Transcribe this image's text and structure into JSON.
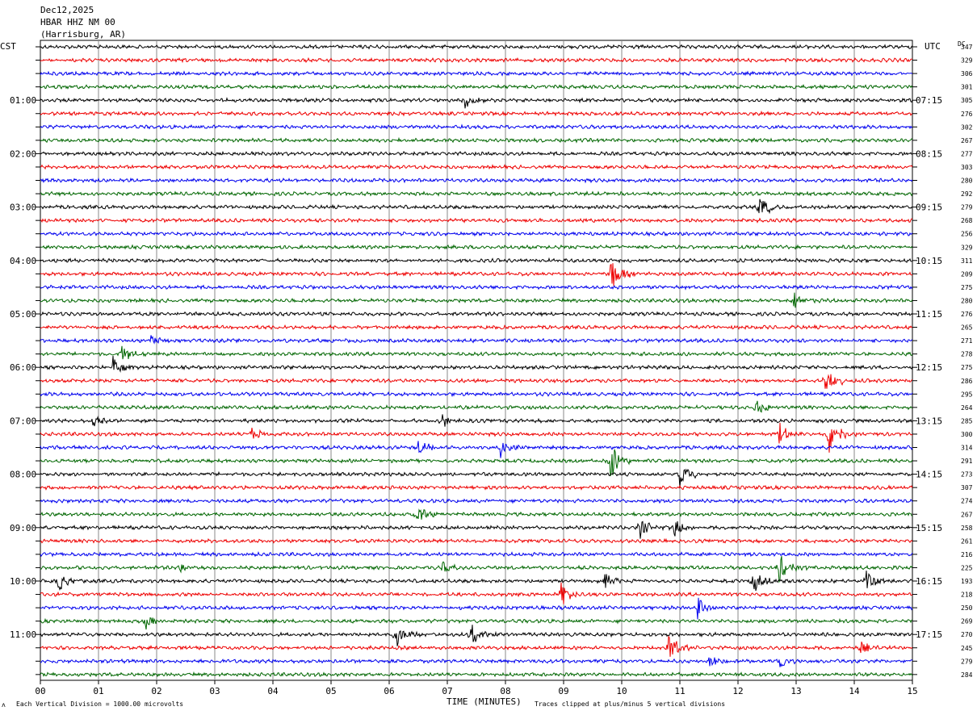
{
  "header": {
    "date": "Dec12,2025",
    "station": "HBAR HHZ NM 00",
    "location": "(Harrisburg, AR)"
  },
  "left_axis_title": "CST",
  "right_axis_title": "UTC",
  "dc_header": "DC",
  "footer": {
    "scale_note": "Each Vertical Division = 1000.00 microvolts",
    "xlabel": "TIME (MINUTES)",
    "clip_note": "Traces clipped at plus/minus 5 vertical divisions",
    "corner_glyph": "ʌ"
  },
  "trace_colors": [
    "#000000",
    "#ee0000",
    "#0000ee",
    "#006600"
  ],
  "chart_data": {
    "type": "line",
    "title": "HBAR HHZ NM 00",
    "xlabel": "TIME (MINUTES)",
    "xlim": [
      0,
      15
    ],
    "x_ticks": [
      "00",
      "01",
      "02",
      "03",
      "04",
      "05",
      "06",
      "07",
      "08",
      "09",
      "10",
      "11",
      "12",
      "13",
      "14",
      "15"
    ],
    "left_hour_labels": [
      "01:00",
      "02:00",
      "03:00",
      "04:00",
      "05:00",
      "06:00",
      "07:00",
      "08:00",
      "09:00",
      "10:00",
      "11:00"
    ],
    "right_hour_labels": [
      "07:15",
      "08:15",
      "09:15",
      "10:15",
      "11:15",
      "12:15",
      "13:15",
      "14:15",
      "15:15",
      "16:15",
      "17:15"
    ],
    "trace_count": 48,
    "dc_offsets": [
      347,
      329,
      306,
      301,
      305,
      276,
      302,
      267,
      277,
      303,
      280,
      292,
      279,
      268,
      256,
      329,
      311,
      209,
      275,
      280,
      276,
      265,
      271,
      278,
      275,
      286,
      295,
      264,
      285,
      300,
      314,
      291,
      273,
      307,
      274,
      267,
      258,
      261,
      216,
      225,
      193,
      218,
      250,
      269,
      270,
      245,
      279,
      284
    ],
    "events": [
      {
        "trace": 4,
        "minute": 7.3,
        "amp": 0.8
      },
      {
        "trace": 12,
        "minute": 12.35,
        "amp": 1.3
      },
      {
        "trace": 17,
        "minute": 9.8,
        "amp": 1.8
      },
      {
        "trace": 19,
        "minute": 12.95,
        "amp": 0.9
      },
      {
        "trace": 22,
        "minute": 1.9,
        "amp": 0.5
      },
      {
        "trace": 23,
        "minute": 1.4,
        "amp": 0.8
      },
      {
        "trace": 24,
        "minute": 1.25,
        "amp": 1.0
      },
      {
        "trace": 25,
        "minute": 13.5,
        "amp": 1.5
      },
      {
        "trace": 27,
        "minute": 12.3,
        "amp": 0.9
      },
      {
        "trace": 28,
        "minute": 0.9,
        "amp": 0.6
      },
      {
        "trace": 28,
        "minute": 6.9,
        "amp": 0.6
      },
      {
        "trace": 29,
        "minute": 3.6,
        "amp": 0.7
      },
      {
        "trace": 29,
        "minute": 12.7,
        "amp": 1.0
      },
      {
        "trace": 29,
        "minute": 13.55,
        "amp": 2.2
      },
      {
        "trace": 30,
        "minute": 7.9,
        "amp": 1.0
      },
      {
        "trace": 30,
        "minute": 6.5,
        "amp": 0.6
      },
      {
        "trace": 31,
        "minute": 9.8,
        "amp": 2.0
      },
      {
        "trace": 32,
        "minute": 11.0,
        "amp": 1.4
      },
      {
        "trace": 35,
        "minute": 6.45,
        "amp": 1.0
      },
      {
        "trace": 36,
        "minute": 10.3,
        "amp": 1.0
      },
      {
        "trace": 36,
        "minute": 10.9,
        "amp": 0.8
      },
      {
        "trace": 39,
        "minute": 12.7,
        "amp": 1.4
      },
      {
        "trace": 39,
        "minute": 6.9,
        "amp": 0.6
      },
      {
        "trace": 39,
        "minute": 2.4,
        "amp": 0.6
      },
      {
        "trace": 40,
        "minute": 0.3,
        "amp": 1.0
      },
      {
        "trace": 40,
        "minute": 9.7,
        "amp": 1.1
      },
      {
        "trace": 40,
        "minute": 12.25,
        "amp": 1.1
      },
      {
        "trace": 40,
        "minute": 14.2,
        "amp": 1.0
      },
      {
        "trace": 41,
        "minute": 8.95,
        "amp": 1.1
      },
      {
        "trace": 42,
        "minute": 11.3,
        "amp": 1.2
      },
      {
        "trace": 43,
        "minute": 1.8,
        "amp": 0.8
      },
      {
        "trace": 44,
        "minute": 6.1,
        "amp": 1.3
      },
      {
        "trace": 44,
        "minute": 7.4,
        "amp": 1.1
      },
      {
        "trace": 45,
        "minute": 10.8,
        "amp": 1.4
      },
      {
        "trace": 45,
        "minute": 14.1,
        "amp": 0.6
      },
      {
        "trace": 46,
        "minute": 12.7,
        "amp": 0.8
      },
      {
        "trace": 46,
        "minute": 11.5,
        "amp": 0.6
      }
    ]
  }
}
